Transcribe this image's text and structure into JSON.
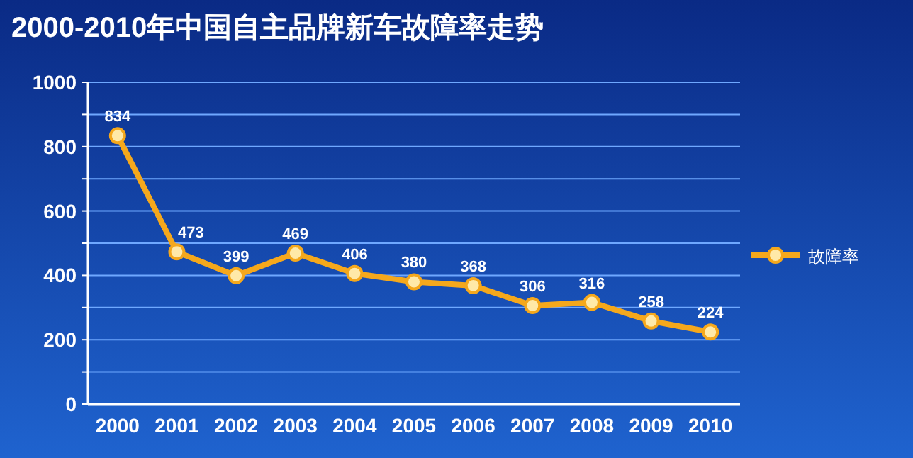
{
  "chart_data": {
    "type": "line",
    "title": "2000-2010年中国自主品牌新车故障率走势",
    "categories": [
      "2000",
      "2001",
      "2002",
      "2003",
      "2004",
      "2005",
      "2006",
      "2007",
      "2008",
      "2009",
      "2010"
    ],
    "series": [
      {
        "name": "故障率",
        "color": "#f5a81c",
        "values": [
          834,
          473,
          399,
          469,
          406,
          380,
          368,
          306,
          316,
          258,
          224
        ]
      }
    ],
    "ylim": [
      0,
      1000
    ],
    "yticks": [
      0,
      {
        "value": 100,
        "label": null
      },
      200,
      {
        "value": 300,
        "label": null
      },
      400,
      {
        "value": 500,
        "label": null
      },
      600,
      {
        "value": 700,
        "label": null
      },
      800,
      {
        "value": 900,
        "label": null
      },
      1000
    ],
    "grid": "y",
    "legend": "right",
    "marker": "circle",
    "line_style": "solid",
    "data_labels": true
  }
}
